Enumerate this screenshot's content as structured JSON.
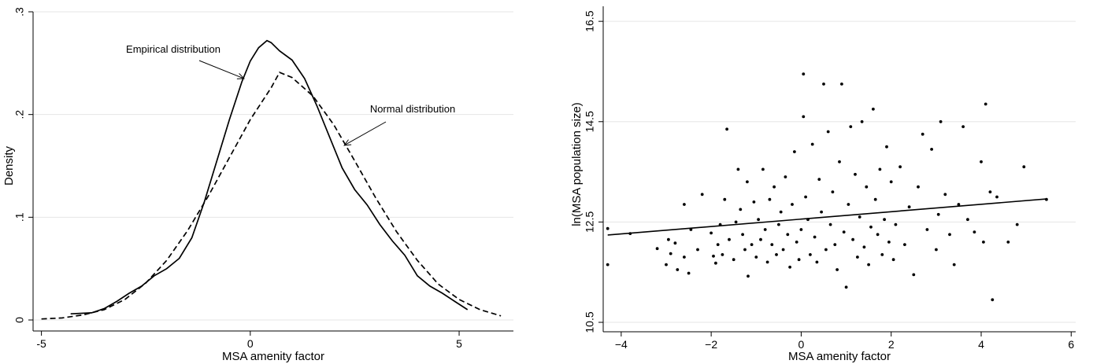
{
  "chart_data": [
    {
      "type": "line",
      "title": "",
      "xlabel": "MSA amenity factor",
      "ylabel": "Density",
      "xlim": [
        -5.2,
        6.3
      ],
      "ylim": [
        0,
        0.3
      ],
      "x_ticks": [
        -5,
        0,
        5
      ],
      "x_tick_labels": [
        "-5",
        "0",
        "5"
      ],
      "y_ticks": [
        0,
        0.1,
        0.2,
        0.3
      ],
      "y_tick_labels": [
        "0",
        ".1",
        ".2",
        ".3"
      ],
      "grid": "horizontal",
      "annotations": [
        {
          "text": "Empirical distribution",
          "arrow_to": [
            -0.15,
            0.235
          ]
        },
        {
          "text": "Normal distribution",
          "arrow_to": [
            2.25,
            0.17
          ]
        }
      ],
      "series": [
        {
          "name": "Empirical distribution",
          "style": "solid",
          "x": [
            -4.3,
            -3.8,
            -3.5,
            -3.2,
            -2.9,
            -2.6,
            -2.3,
            -2.0,
            -1.7,
            -1.4,
            -1.1,
            -0.8,
            -0.5,
            -0.2,
            0.0,
            0.2,
            0.4,
            0.5,
            0.7,
            1.0,
            1.3,
            1.6,
            1.9,
            2.2,
            2.5,
            2.8,
            3.1,
            3.4,
            3.7,
            4.0,
            4.3,
            4.6,
            4.9,
            5.2
          ],
          "y": [
            0.006,
            0.007,
            0.011,
            0.018,
            0.026,
            0.033,
            0.043,
            0.05,
            0.06,
            0.08,
            0.115,
            0.155,
            0.195,
            0.232,
            0.252,
            0.265,
            0.272,
            0.27,
            0.262,
            0.253,
            0.235,
            0.208,
            0.178,
            0.148,
            0.127,
            0.112,
            0.093,
            0.077,
            0.063,
            0.043,
            0.033,
            0.026,
            0.018,
            0.01
          ]
        },
        {
          "name": "Normal distribution",
          "style": "dashed",
          "x": [
            -5.0,
            -4.5,
            -4.0,
            -3.5,
            -3.0,
            -2.5,
            -2.0,
            -1.5,
            -1.0,
            -0.5,
            0.0,
            0.5,
            0.7,
            1.0,
            1.5,
            2.0,
            2.5,
            3.0,
            3.5,
            4.0,
            4.5,
            5.0,
            5.5,
            6.0
          ],
          "y": [
            0.001,
            0.002,
            0.005,
            0.01,
            0.02,
            0.036,
            0.058,
            0.087,
            0.121,
            0.158,
            0.195,
            0.226,
            0.241,
            0.236,
            0.218,
            0.19,
            0.155,
            0.119,
            0.086,
            0.058,
            0.035,
            0.02,
            0.01,
            0.004
          ]
        }
      ]
    },
    {
      "type": "scatter",
      "title": "",
      "xlabel": "MSA amenity factor",
      "ylabel": "ln(MSA population size)",
      "xlim": [
        -4.4,
        6.1
      ],
      "ylim": [
        10.5,
        16.8
      ],
      "x_ticks": [
        -4,
        -2,
        0,
        2,
        4,
        6
      ],
      "x_tick_labels": [
        "−4",
        "−2",
        "0",
        "2",
        "4",
        "6"
      ],
      "y_ticks": [
        10.5,
        12.5,
        14.5,
        16.5
      ],
      "y_tick_labels": [
        "10.5",
        "12.5",
        "14.5",
        "16.5"
      ],
      "grid": "horizontal",
      "fit_line": {
        "x": [
          -4.3,
          5.45
        ],
        "y": [
          12.24,
          12.96
        ]
      },
      "points": [
        [
          -4.3,
          12.37
        ],
        [
          -3.8,
          12.27
        ],
        [
          -4.3,
          11.65
        ],
        [
          -3.2,
          11.97
        ],
        [
          -3.0,
          11.65
        ],
        [
          -2.9,
          11.87
        ],
        [
          -2.95,
          12.15
        ],
        [
          -2.8,
          12.08
        ],
        [
          -2.75,
          11.55
        ],
        [
          -2.6,
          11.8
        ],
        [
          -2.5,
          11.48
        ],
        [
          -2.45,
          12.35
        ],
        [
          -2.6,
          12.85
        ],
        [
          -2.3,
          11.95
        ],
        [
          -2.2,
          13.05
        ],
        [
          -2.0,
          12.28
        ],
        [
          -1.95,
          11.82
        ],
        [
          -1.9,
          11.68
        ],
        [
          -1.85,
          12.05
        ],
        [
          -1.8,
          12.45
        ],
        [
          -1.75,
          11.85
        ],
        [
          -1.7,
          12.95
        ],
        [
          -1.65,
          14.35
        ],
        [
          -1.6,
          12.15
        ],
        [
          -1.5,
          11.75
        ],
        [
          -1.45,
          12.5
        ],
        [
          -1.4,
          13.55
        ],
        [
          -1.35,
          12.75
        ],
        [
          -1.3,
          12.25
        ],
        [
          -1.25,
          11.95
        ],
        [
          -1.2,
          13.3
        ],
        [
          -1.18,
          11.42
        ],
        [
          -1.1,
          12.05
        ],
        [
          -1.05,
          12.9
        ],
        [
          -1.0,
          11.8
        ],
        [
          -0.95,
          12.55
        ],
        [
          -0.9,
          12.15
        ],
        [
          -0.85,
          13.55
        ],
        [
          -0.8,
          12.35
        ],
        [
          -0.75,
          11.7
        ],
        [
          -0.7,
          12.95
        ],
        [
          -0.65,
          12.05
        ],
        [
          -0.6,
          13.2
        ],
        [
          -0.55,
          11.85
        ],
        [
          -0.5,
          12.45
        ],
        [
          -0.45,
          12.7
        ],
        [
          -0.4,
          11.95
        ],
        [
          -0.35,
          13.4
        ],
        [
          -0.3,
          12.25
        ],
        [
          -0.25,
          11.6
        ],
        [
          -0.2,
          12.85
        ],
        [
          -0.15,
          13.9
        ],
        [
          -0.1,
          12.1
        ],
        [
          -0.05,
          11.75
        ],
        [
          0.0,
          12.35
        ],
        [
          0.05,
          14.6
        ],
        [
          0.05,
          15.45
        ],
        [
          0.1,
          13.0
        ],
        [
          0.15,
          12.55
        ],
        [
          0.2,
          11.85
        ],
        [
          0.25,
          14.05
        ],
        [
          0.3,
          12.2
        ],
        [
          0.35,
          11.7
        ],
        [
          0.4,
          13.35
        ],
        [
          0.45,
          12.7
        ],
        [
          0.5,
          15.25
        ],
        [
          0.55,
          11.95
        ],
        [
          0.6,
          14.3
        ],
        [
          0.65,
          12.45
        ],
        [
          0.7,
          13.1
        ],
        [
          0.75,
          12.05
        ],
        [
          0.8,
          11.55
        ],
        [
          0.85,
          13.7
        ],
        [
          0.9,
          15.25
        ],
        [
          0.95,
          12.3
        ],
        [
          1.0,
          11.2
        ],
        [
          1.05,
          12.85
        ],
        [
          1.1,
          14.4
        ],
        [
          1.15,
          12.15
        ],
        [
          1.2,
          13.45
        ],
        [
          1.25,
          11.8
        ],
        [
          1.3,
          12.6
        ],
        [
          1.35,
          14.5
        ],
        [
          1.4,
          12.0
        ],
        [
          1.45,
          13.2
        ],
        [
          1.5,
          11.65
        ],
        [
          1.55,
          12.4
        ],
        [
          1.6,
          14.75
        ],
        [
          1.65,
          12.95
        ],
        [
          1.7,
          12.25
        ],
        [
          1.75,
          13.55
        ],
        [
          1.8,
          11.85
        ],
        [
          1.85,
          12.55
        ],
        [
          1.9,
          14.0
        ],
        [
          1.95,
          12.1
        ],
        [
          2.0,
          13.3
        ],
        [
          2.05,
          11.75
        ],
        [
          2.1,
          12.45
        ],
        [
          2.2,
          13.6
        ],
        [
          2.3,
          12.05
        ],
        [
          2.4,
          12.8
        ],
        [
          2.5,
          11.45
        ],
        [
          2.6,
          13.2
        ],
        [
          2.7,
          14.25
        ],
        [
          2.8,
          12.35
        ],
        [
          2.9,
          13.95
        ],
        [
          3.0,
          11.95
        ],
        [
          3.05,
          12.65
        ],
        [
          3.1,
          14.5
        ],
        [
          3.2,
          13.05
        ],
        [
          3.3,
          12.25
        ],
        [
          3.4,
          11.65
        ],
        [
          3.5,
          12.85
        ],
        [
          3.6,
          14.4
        ],
        [
          3.7,
          12.55
        ],
        [
          3.85,
          12.3
        ],
        [
          4.0,
          13.7
        ],
        [
          4.05,
          12.1
        ],
        [
          4.1,
          14.85
        ],
        [
          4.2,
          13.1
        ],
        [
          4.25,
          10.95
        ],
        [
          4.35,
          13.0
        ],
        [
          4.6,
          12.1
        ],
        [
          4.8,
          12.45
        ],
        [
          4.95,
          13.6
        ],
        [
          5.45,
          12.95
        ]
      ]
    }
  ]
}
